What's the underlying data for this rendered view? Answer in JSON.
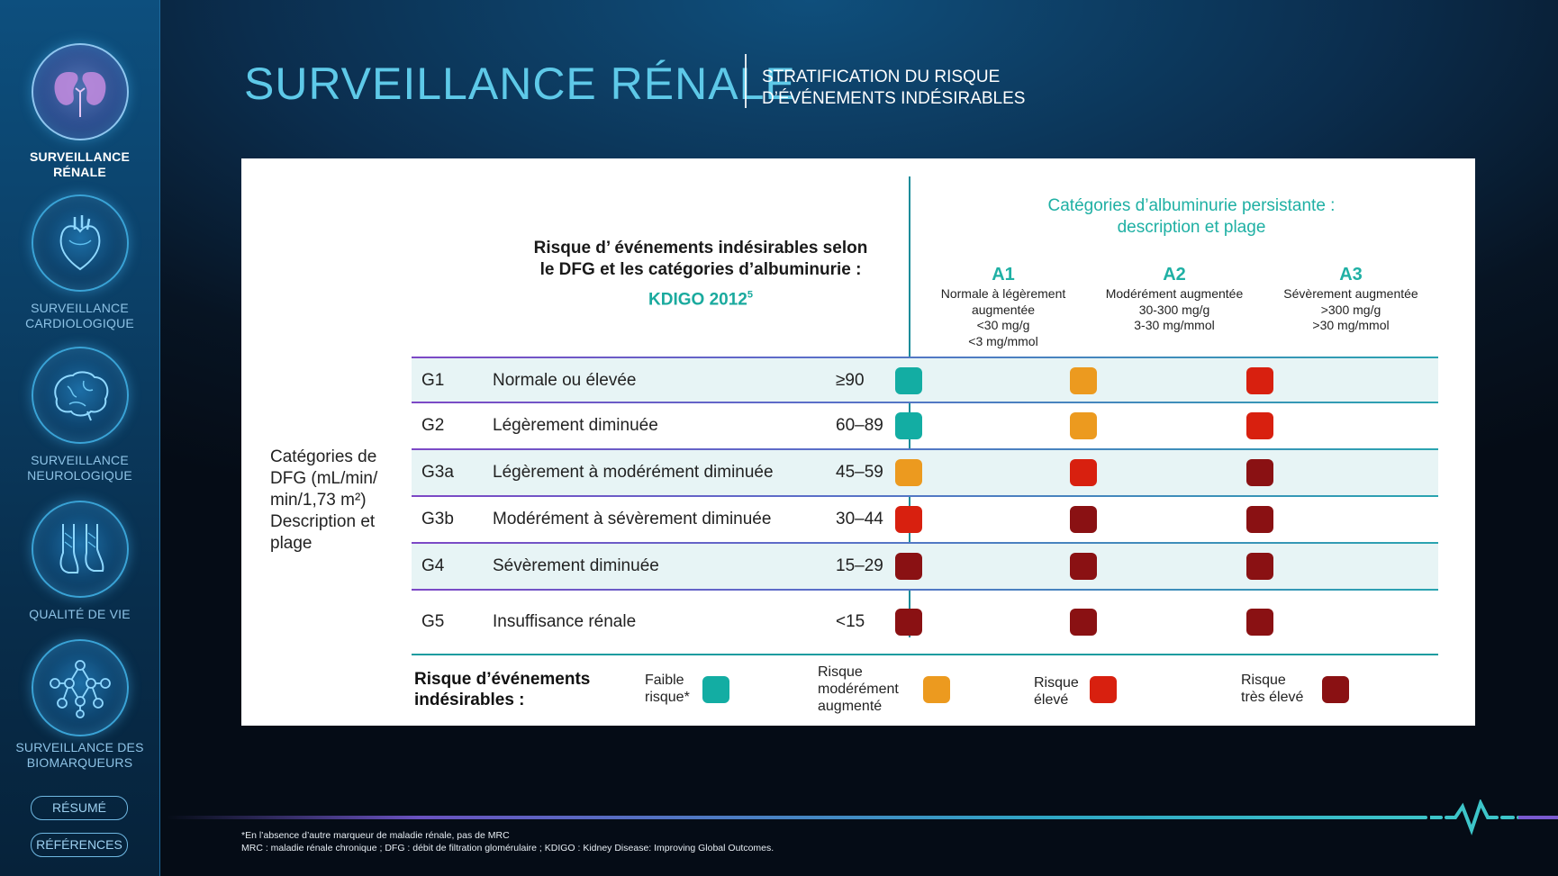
{
  "sidebar": {
    "items": [
      {
        "label_line1": "SURVEILLANCE",
        "label_line2": "RÉNALE",
        "icon": "kidneys-icon",
        "active": true
      },
      {
        "label_line1": "SURVEILLANCE",
        "label_line2": "CARDIOLOGIQUE",
        "icon": "heart-icon",
        "active": false
      },
      {
        "label_line1": "SURVEILLANCE",
        "label_line2": "NEUROLOGIQUE",
        "icon": "brain-icon",
        "active": false
      },
      {
        "label_line1": "QUALITÉ DE VIE",
        "label_line2": "",
        "icon": "feet-icon",
        "active": false
      },
      {
        "label_line1": "SURVEILLANCE DES",
        "label_line2": "BIOMARQUEURS",
        "icon": "molecule-icon",
        "active": false
      }
    ],
    "resume_label": "RÉSUMÉ",
    "references_label": "RÉFÉRENCES"
  },
  "header": {
    "title": "SURVEILLANCE RÉNALE",
    "subtitle_line1": "STRATIFICATION DU RISQUE",
    "subtitle_line2": "D’ÉVÉNEMENTS INDÉSIRABLES"
  },
  "table": {
    "heading_line1": "Risque d’ événements indésirables selon",
    "heading_line2": "le DFG et les catégories d’albuminurie :",
    "kdigo": "KDIGO 2012",
    "kdigo_ref": "5",
    "albuminuria_title_line1": "Catégories d’albuminurie persistante :",
    "albuminuria_title_line2": "description et plage",
    "columns": [
      {
        "code": "A1",
        "desc": [
          "Normale à légèrement",
          "augmentée",
          "<30 mg/g",
          "<3 mg/mmol"
        ]
      },
      {
        "code": "A2",
        "desc": [
          "Modérément augmentée",
          "30-300 mg/g",
          "3-30 mg/mmol"
        ]
      },
      {
        "code": "A3",
        "desc": [
          "Sévèrement augmentée",
          ">300 mg/g",
          ">30 mg/mmol"
        ]
      }
    ],
    "gfr_label_lines": [
      "Catégories de",
      "DFG (mL/min/",
      "min/1,73 m²)",
      "Description et",
      "plage"
    ],
    "rows": [
      {
        "code": "G1",
        "desc": "Normale ou élevée",
        "range": "≥90",
        "risks": [
          "low",
          "moderate",
          "high"
        ]
      },
      {
        "code": "G2",
        "desc": "Légèrement diminuée",
        "range": "60–89",
        "risks": [
          "low",
          "moderate",
          "high"
        ]
      },
      {
        "code": "G3a",
        "desc": "Légèrement à modérément diminuée",
        "range": "45–59",
        "risks": [
          "moderate",
          "high",
          "very_high"
        ]
      },
      {
        "code": "G3b",
        "desc": "Modérément à sévèrement diminuée",
        "range": "30–44",
        "risks": [
          "high",
          "very_high",
          "very_high"
        ]
      },
      {
        "code": "G4",
        "desc": "Sévèrement diminuée",
        "range": "15–29",
        "risks": [
          "very_high",
          "very_high",
          "very_high"
        ]
      },
      {
        "code": "G5",
        "desc": "Insuffisance rénale",
        "range": "<15",
        "risks": [
          "very_high",
          "very_high",
          "very_high"
        ]
      }
    ]
  },
  "legend": {
    "title_line1": "Risque d’événements",
    "title_line2": "indésirables :",
    "items": [
      {
        "key": "low",
        "lines": [
          "Faible",
          "risque*"
        ]
      },
      {
        "key": "moderate",
        "lines": [
          "Risque",
          "modérément",
          "augmenté"
        ]
      },
      {
        "key": "high",
        "lines": [
          "Risque",
          "élevé"
        ]
      },
      {
        "key": "very_high",
        "lines": [
          "Risque",
          "très élevé"
        ]
      }
    ]
  },
  "colors": {
    "low": "#13ada3",
    "moderate": "#ec9a1f",
    "high": "#d8200f",
    "very_high": "#8a1113",
    "accent": "#1fb0a4",
    "title": "#5ec9e8"
  },
  "footnotes": {
    "line1": "*En l’absence d’autre marqueur de maladie rénale, pas de MRC",
    "line2": "MRC : maladie rénale chronique ; DFG : débit de filtration glomérulaire ; KDIGO : Kidney Disease: Improving Global Outcomes."
  }
}
